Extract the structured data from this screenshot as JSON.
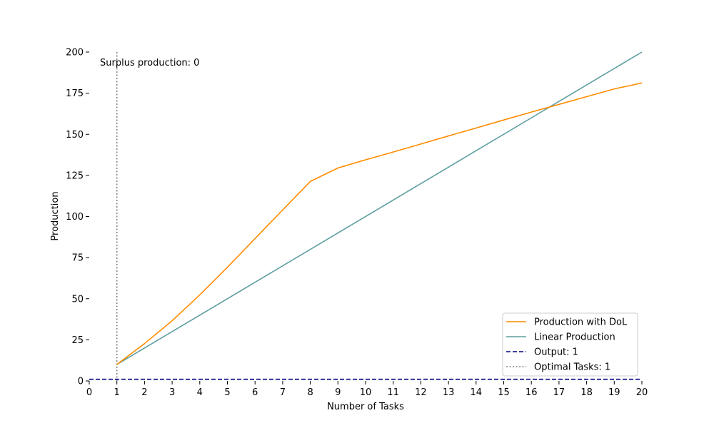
{
  "chart_data": {
    "type": "line",
    "xlabel": "Number of Tasks",
    "ylabel": "Production",
    "xlim": [
      0,
      20
    ],
    "ylim": [
      0,
      200
    ],
    "xticks": [
      "0",
      "1",
      "2",
      "3",
      "4",
      "5",
      "6",
      "7",
      "8",
      "9",
      "10",
      "11",
      "12",
      "13",
      "14",
      "15",
      "16",
      "17",
      "18",
      "19",
      "20"
    ],
    "yticks": [
      "0",
      "25",
      "50",
      "75",
      "100",
      "125",
      "150",
      "175",
      "200"
    ],
    "grid": false,
    "legend_position": "lower-right",
    "annotation": "Surplus production: 0",
    "series": [
      {
        "name": "Production with DoL",
        "color": "#ff8c00",
        "style": "solid",
        "x": [
          1,
          2,
          3,
          4,
          5,
          6,
          7,
          8,
          9,
          10,
          11,
          12,
          13,
          14,
          15,
          16,
          17,
          18,
          19,
          20
        ],
        "y": [
          10,
          22.7,
          36.6,
          52.3,
          69.1,
          86.6,
          104,
          121.3,
          129.5,
          134.5,
          139.2,
          144.1,
          149.0,
          153.8,
          158.7,
          163.5,
          168.2,
          172.9,
          177.6,
          181.2
        ]
      },
      {
        "name": "Linear Production",
        "color": "#5f9ea0",
        "style": "solid",
        "x": [
          1,
          20
        ],
        "y": [
          10,
          200
        ]
      },
      {
        "name": "Output: 1",
        "color": "#000080",
        "style": "dashed",
        "x": [
          0,
          20
        ],
        "y": [
          1,
          1
        ]
      },
      {
        "name": "Optimal Tasks: 1",
        "color": "#808080",
        "style": "dotted",
        "x": [
          1,
          1
        ],
        "y": [
          0,
          200
        ]
      }
    ]
  }
}
